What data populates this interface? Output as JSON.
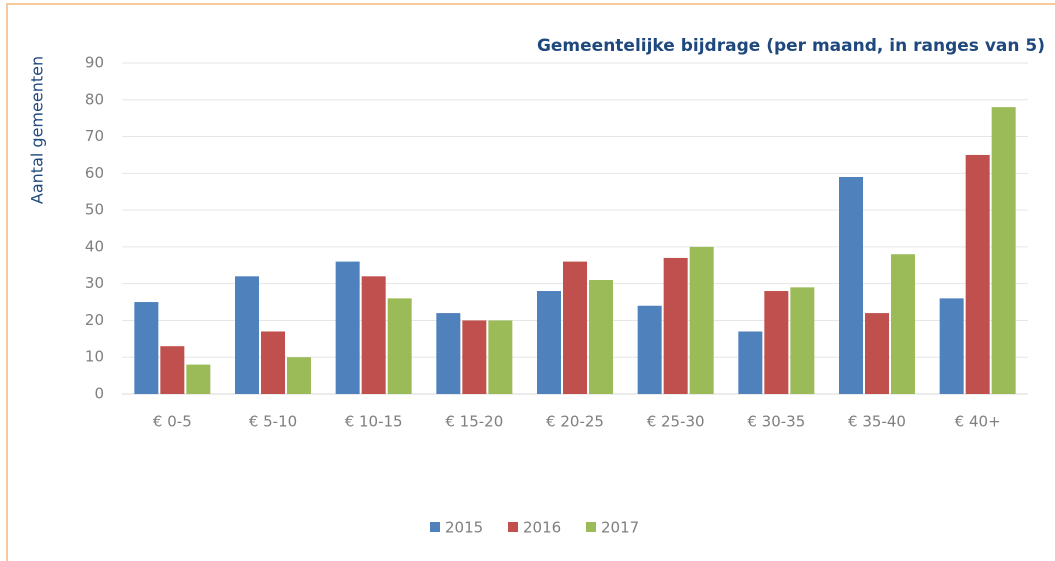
{
  "chart_data": {
    "type": "bar",
    "title": "Gemeentelijke bijdrage (per maand, in ranges van 5)",
    "y_label": "Aantal gemeenten",
    "categories": [
      "€ 0-5",
      "€ 5-10",
      "€ 10-15",
      "€ 15-20",
      "€ 20-25",
      "€ 25-30",
      "€ 30-35",
      "€ 35-40",
      "€ 40+"
    ],
    "series": [
      {
        "name": "2015",
        "color": "#4f81bd",
        "values": [
          25,
          32,
          36,
          22,
          28,
          24,
          17,
          59,
          26
        ]
      },
      {
        "name": "2016",
        "color": "#c0504d",
        "values": [
          13,
          17,
          32,
          20,
          36,
          37,
          28,
          22,
          65
        ]
      },
      {
        "name": "2017",
        "color": "#9bbb59",
        "values": [
          8,
          10,
          26,
          20,
          31,
          40,
          29,
          38,
          78
        ]
      }
    ],
    "ylim": [
      0,
      90
    ],
    "yticks": [
      0,
      10,
      20,
      30,
      40,
      50,
      60,
      70,
      80,
      90
    ],
    "grid": true,
    "legend": "bottom"
  }
}
